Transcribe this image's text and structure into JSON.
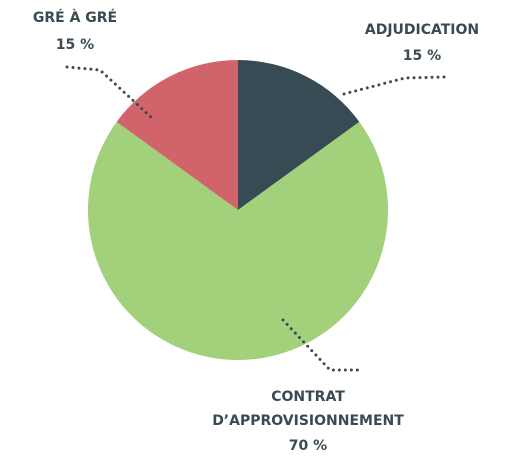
{
  "chart_data": {
    "type": "pie",
    "categories": [
      "ADJUDICATION",
      "CONTRAT D’APPROVISIONNEMENT",
      "GRÉ À GRÉ"
    ],
    "values": [
      15,
      70,
      15
    ],
    "value_labels": [
      "15 %",
      "70 %",
      "15 %"
    ],
    "colors": [
      "#364b54",
      "#a3d07a",
      "#d0646a"
    ]
  }
}
